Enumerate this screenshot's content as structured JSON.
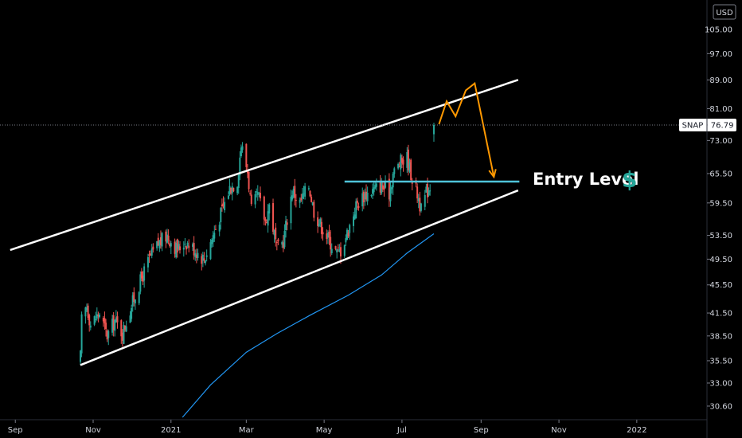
{
  "colors": {
    "background": "#000000",
    "up_candle": "#26a69a",
    "down_candle": "#ef5350",
    "channel_line": "#ffffff",
    "entry_line": "#4fc3d9",
    "moving_average": "#2196f3",
    "projection": "#ff9800",
    "dollar_sign": "#26a69a"
  },
  "currency": "USD",
  "chart_data": {
    "type": "candlestick",
    "symbol": "SNAP",
    "last_price": "76.79",
    "price_badge": "SNAP · 76.79",
    "y_scale": "log",
    "ylim": [
      29.5,
      115
    ],
    "xlim": [
      "2020-08-20",
      "2022-02-25"
    ],
    "grid": false,
    "y_ticks": [
      {
        "value": 105.0,
        "label": "105.00"
      },
      {
        "value": 97.0,
        "label": "97.00"
      },
      {
        "value": 89.0,
        "label": "89.00"
      },
      {
        "value": 81.0,
        "label": "81.00"
      },
      {
        "value": 73.0,
        "label": "73.00"
      },
      {
        "value": 65.5,
        "label": "65.50"
      },
      {
        "value": 59.5,
        "label": "59.50"
      },
      {
        "value": 53.5,
        "label": "53.50"
      },
      {
        "value": 49.5,
        "label": "49.50"
      },
      {
        "value": 45.5,
        "label": "45.50"
      },
      {
        "value": 41.5,
        "label": "41.50"
      },
      {
        "value": 38.5,
        "label": "38.50"
      },
      {
        "value": 35.5,
        "label": "35.50"
      },
      {
        "value": 33.0,
        "label": "33.00"
      },
      {
        "value": 30.6,
        "label": "30.60"
      }
    ],
    "x_ticks": [
      {
        "date": "2020-09-01",
        "label": "Sep"
      },
      {
        "date": "2020-11-01",
        "label": "Nov"
      },
      {
        "date": "2021-01-01",
        "label": "2021"
      },
      {
        "date": "2021-03-01",
        "label": "Mar"
      },
      {
        "date": "2021-05-01",
        "label": "May"
      },
      {
        "date": "2021-07-01",
        "label": "Jul"
      },
      {
        "date": "2021-09-01",
        "label": "Sep"
      },
      {
        "date": "2021-11-01",
        "label": "Nov"
      },
      {
        "date": "2022-01-01",
        "label": "2022"
      }
    ],
    "close_anchors": [
      [
        "2020-10-22",
        36.0
      ],
      [
        "2020-10-23",
        40.5
      ],
      [
        "2020-10-27",
        42.5
      ],
      [
        "2020-10-30",
        40.0
      ],
      [
        "2020-11-06",
        41.5
      ],
      [
        "2020-11-12",
        38.5
      ],
      [
        "2020-11-18",
        40.5
      ],
      [
        "2020-11-24",
        38.8
      ],
      [
        "2020-12-01",
        42.5
      ],
      [
        "2020-12-08",
        46.0
      ],
      [
        "2020-12-15",
        49.5
      ],
      [
        "2020-12-22",
        52.0
      ],
      [
        "2020-12-29",
        53.5
      ],
      [
        "2021-01-06",
        51.0
      ],
      [
        "2021-01-12",
        52.5
      ],
      [
        "2021-01-20",
        51.0
      ],
      [
        "2021-01-27",
        49.5
      ],
      [
        "2021-02-03",
        53.5
      ],
      [
        "2021-02-10",
        58.0
      ],
      [
        "2021-02-16",
        62.5
      ],
      [
        "2021-02-22",
        64.0
      ],
      [
        "2021-02-25",
        72.0
      ],
      [
        "2021-03-02",
        66.0
      ],
      [
        "2021-03-05",
        58.0
      ],
      [
        "2021-03-10",
        61.0
      ],
      [
        "2021-03-16",
        56.0
      ],
      [
        "2021-03-19",
        59.0
      ],
      [
        "2021-03-25",
        51.0
      ],
      [
        "2021-03-30",
        52.5
      ],
      [
        "2021-04-06",
        62.0
      ],
      [
        "2021-04-12",
        59.5
      ],
      [
        "2021-04-19",
        63.0
      ],
      [
        "2021-04-23",
        58.0
      ],
      [
        "2021-04-28",
        55.5
      ],
      [
        "2021-05-04",
        53.0
      ],
      [
        "2021-05-11",
        50.5
      ],
      [
        "2021-05-14",
        51.0
      ],
      [
        "2021-05-20",
        54.5
      ],
      [
        "2021-05-26",
        59.0
      ],
      [
        "2021-06-01",
        61.0
      ],
      [
        "2021-06-08",
        62.0
      ],
      [
        "2021-06-14",
        63.0
      ],
      [
        "2021-06-21",
        61.5
      ],
      [
        "2021-06-24",
        65.5
      ],
      [
        "2021-06-30",
        68.0
      ],
      [
        "2021-07-05",
        69.0
      ],
      [
        "2021-07-09",
        64.5
      ],
      [
        "2021-07-14",
        60.5
      ],
      [
        "2021-07-16",
        58.0
      ],
      [
        "2021-07-20",
        61.5
      ],
      [
        "2021-07-23",
        63.0
      ],
      [
        "2021-07-26",
        76.79
      ]
    ],
    "drawings": {
      "upper_channel": {
        "from": [
          "2020-08-28",
          51.0
        ],
        "to": [
          "2021-09-30",
          89.0
        ]
      },
      "lower_channel": {
        "from": [
          "2020-10-22",
          35.0
        ],
        "to": [
          "2021-09-30",
          62.0
        ]
      },
      "entry_level": {
        "value": 63.8,
        "from": "2021-05-17",
        "to": "2021-10-01",
        "label": "Entry Level",
        "symbol": "$"
      },
      "moving_average": [
        [
          "2021-01-10",
          29.5
        ],
        [
          "2021-02-01",
          32.8
        ],
        [
          "2021-03-01",
          36.5
        ],
        [
          "2021-03-25",
          38.8
        ],
        [
          "2021-04-20",
          41.2
        ],
        [
          "2021-05-20",
          44.0
        ],
        [
          "2021-06-15",
          47.0
        ],
        [
          "2021-07-05",
          50.5
        ],
        [
          "2021-07-26",
          53.8
        ]
      ],
      "projection": [
        [
          "2021-07-30",
          77.0
        ],
        [
          "2021-08-05",
          83.0
        ],
        [
          "2021-08-12",
          79.0
        ],
        [
          "2021-08-20",
          86.0
        ],
        [
          "2021-08-27",
          88.0
        ],
        [
          "2021-09-11",
          64.8
        ]
      ]
    }
  }
}
